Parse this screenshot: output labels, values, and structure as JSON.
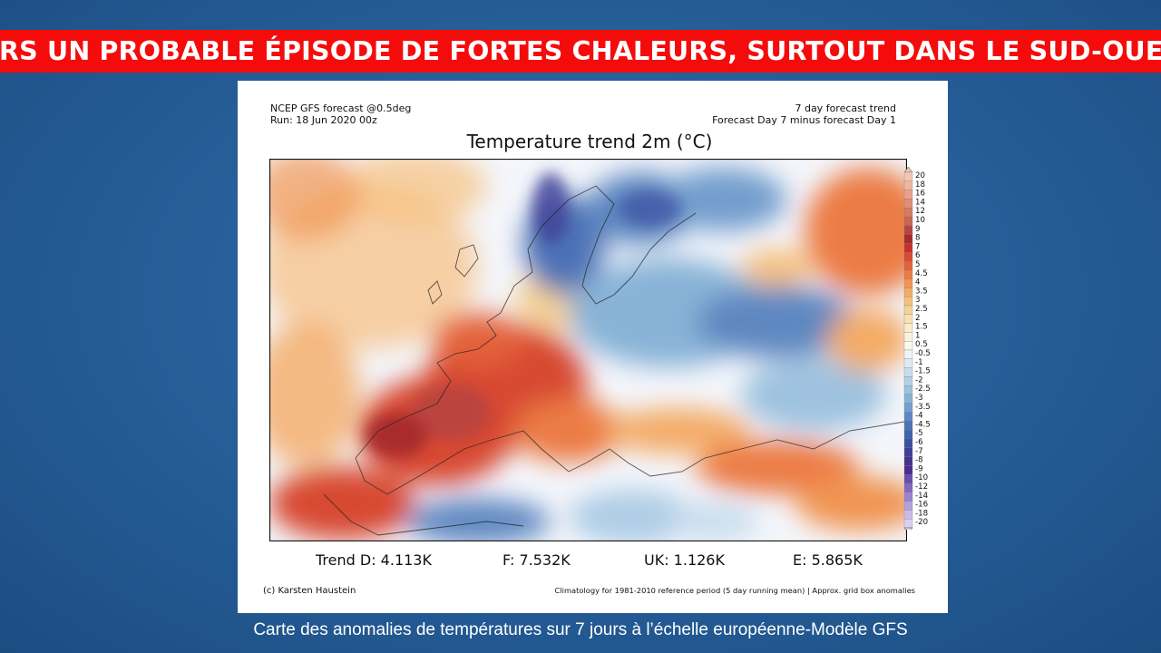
{
  "banner": {
    "title": "VERS UN PROBABLE ÉPISODE DE FORTES CHALEURS, SURTOUT DANS LE SUD-OUEST"
  },
  "header": {
    "model_line": "NCEP GFS forecast @0.5deg",
    "run_line": "Run: 18 Jun 2020 00z",
    "trend_line": "7 day forecast trend",
    "diff_line": "Forecast Day 7 minus forecast Day 1"
  },
  "map": {
    "title": "Temperature trend 2m (°C)",
    "colors": {
      "hot": "#a31f1f",
      "warm": "#e8633a",
      "mild": "#f7c895",
      "neutral": "#f4f6fb",
      "cool": "#aecde6",
      "cold": "#5b7fbd",
      "very_cold": "#3b2f9e"
    }
  },
  "colorbar": {
    "labels": [
      "20",
      "18",
      "16",
      "14",
      "12",
      "10",
      "9",
      "8",
      "7",
      "6",
      "5",
      "4.5",
      "4",
      "3.5",
      "3",
      "2.5",
      "2",
      "1.5",
      "1",
      "0.5",
      "-0.5",
      "-1",
      "-1.5",
      "-2",
      "-2.5",
      "-3",
      "-3.5",
      "-4",
      "-4.5",
      "-5",
      "-6",
      "-7",
      "-8",
      "-9",
      "-10",
      "-12",
      "-14",
      "-16",
      "-18",
      "-20"
    ],
    "colors": [
      "#f2c6b4",
      "#eeb59f",
      "#e8a28a",
      "#e08f76",
      "#d67b63",
      "#c86553",
      "#b84440",
      "#a42a2d",
      "#c6302c",
      "#d84a33",
      "#e4623a",
      "#ec7c45",
      "#f19553",
      "#f4ab66",
      "#f6c07d",
      "#f7d296",
      "#f8e1b1",
      "#f8ecca",
      "#f8f3df",
      "#fbf9ee",
      "#eef4fa",
      "#dbeaf5",
      "#c8ddee",
      "#b3d0e7",
      "#9ec2df",
      "#88b3d7",
      "#739ecd",
      "#5e88c1",
      "#4d73b6",
      "#4062ab",
      "#3b509f",
      "#3e3f96",
      "#46318c",
      "#4e2b8f",
      "#6a4cb0",
      "#8466c4",
      "#9c83d2",
      "#b3a0df",
      "#c8bbea",
      "#d9d1f2"
    ]
  },
  "stats": {
    "trend_d": "Trend D: 4.113K",
    "trend_f": "F: 7.532K",
    "trend_uk": "UK: 1.126K",
    "trend_e": "E: 5.865K"
  },
  "footer": {
    "credit": "(c) Karsten Haustein",
    "note": "Climatology for 1981-2010 reference period (5 day running mean) | Approx. grid box anomalies"
  },
  "caption": "Carte des anomalies de températures sur 7 jours à l’échelle européenne-Modèle GFS"
}
